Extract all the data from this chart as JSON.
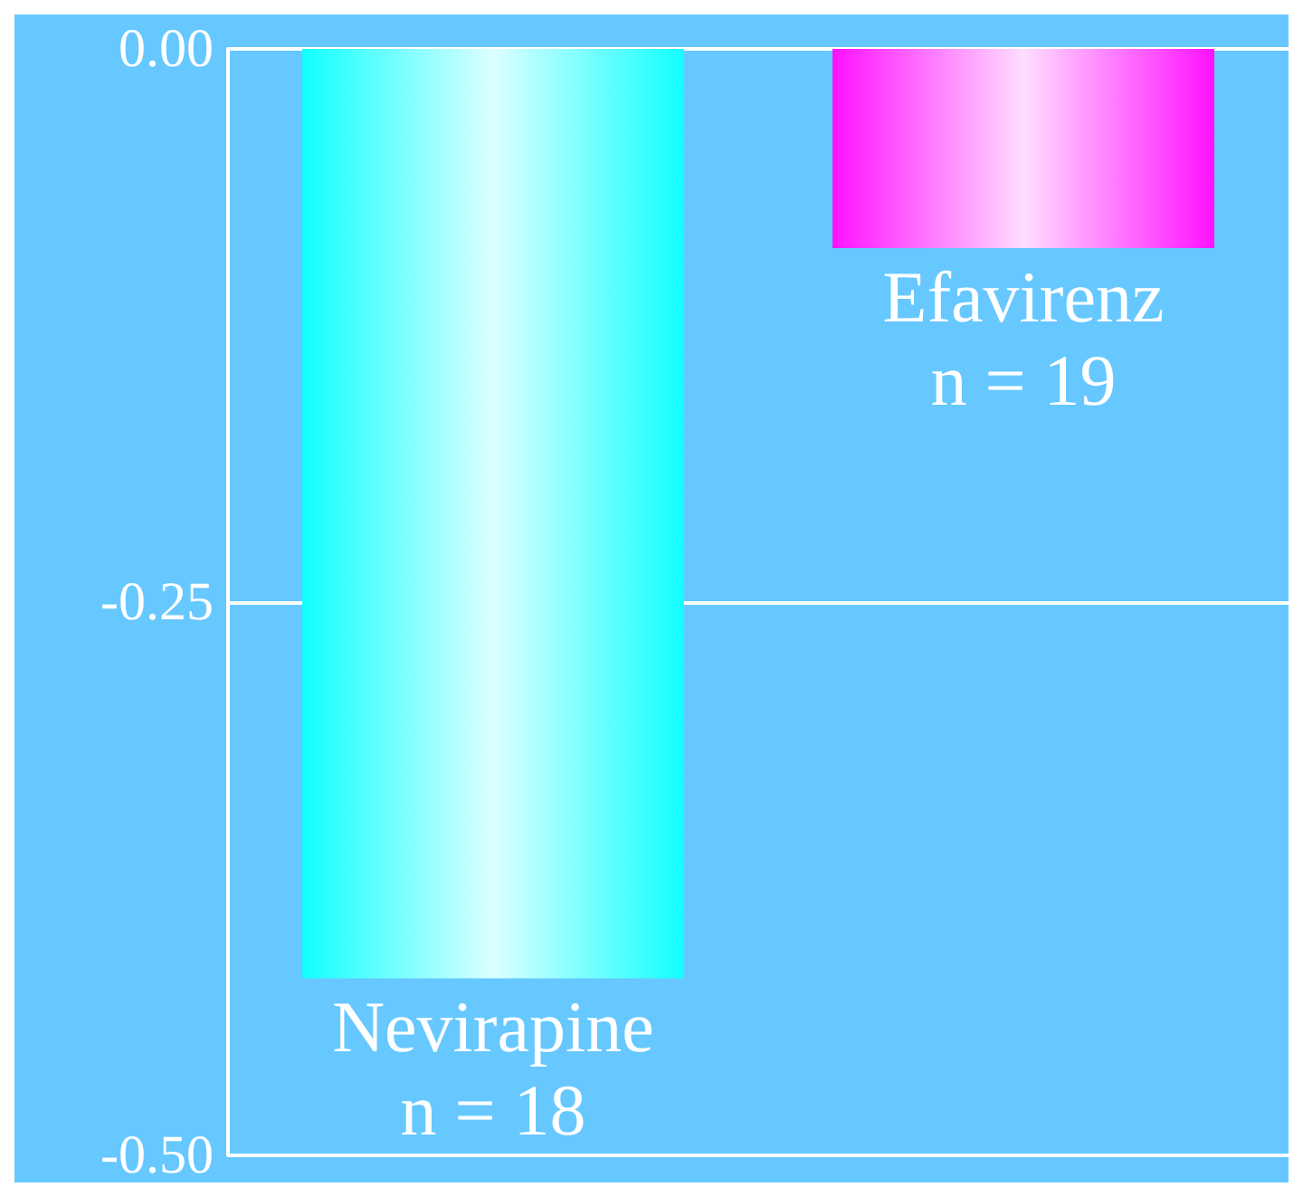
{
  "chart_data": {
    "type": "bar",
    "categories": [
      "Nevirapine\nn = 18",
      "Efavirenz\nn = 19"
    ],
    "colors": [
      "#11ffff",
      "#ff11ff"
    ],
    "values": [
      -0.42,
      -0.09
    ],
    "ylim": [
      -0.5,
      0
    ],
    "yticks": [
      {
        "value": 0,
        "label": "0.00"
      },
      {
        "value": -0.25,
        "label": "-0.25"
      },
      {
        "value": -0.5,
        "label": "-0.50"
      }
    ],
    "grid": "y"
  }
}
